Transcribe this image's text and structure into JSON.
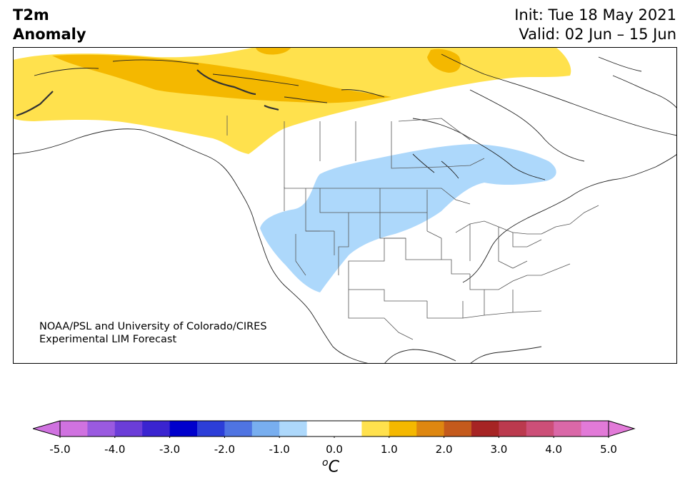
{
  "header": {
    "title_line1": "T2m",
    "title_line2": "Anomaly",
    "init": "Init: Tue 18 May 2021",
    "valid": "Valid: 02 Jun – 15 Jun"
  },
  "credit": {
    "line1": "NOAA/PSL and University of Colorado/CIRES",
    "line2": "Experimental LIM Forecast"
  },
  "colorbar": {
    "unit_sup": "o",
    "unit_main": "C",
    "range": [
      -5.0,
      5.0
    ],
    "step": 0.5,
    "ticks": [
      "-5.0",
      "-4.0",
      "-3.0",
      "-2.0",
      "-1.0",
      "0.0",
      "1.0",
      "2.0",
      "3.0",
      "4.0",
      "5.0"
    ],
    "under_color": "#d072e0",
    "over_color": "#e27ad8",
    "colors": [
      "#d072e0",
      "#9a5ae0",
      "#6b3dd8",
      "#3a24d0",
      "#0000cc",
      "#2c3ed8",
      "#4f74e2",
      "#78aeef",
      "#add8fb",
      "#ffffff",
      "#ffffff",
      "#ffe14d",
      "#f4b800",
      "#de8710",
      "#c45a1c",
      "#a62424",
      "#bb3a4e",
      "#cc4f78",
      "#da68a8",
      "#e27ad8"
    ]
  },
  "anomaly_regions": [
    {
      "name": "warm-north-canada-1c",
      "color": "#ffe14d",
      "level": "1.0"
    },
    {
      "name": "warm-north-canada-1-5c",
      "color": "#f4b800",
      "level": "1.5"
    },
    {
      "name": "cool-central-1c",
      "color": "#add8fb",
      "level": "-1.0"
    }
  ]
}
